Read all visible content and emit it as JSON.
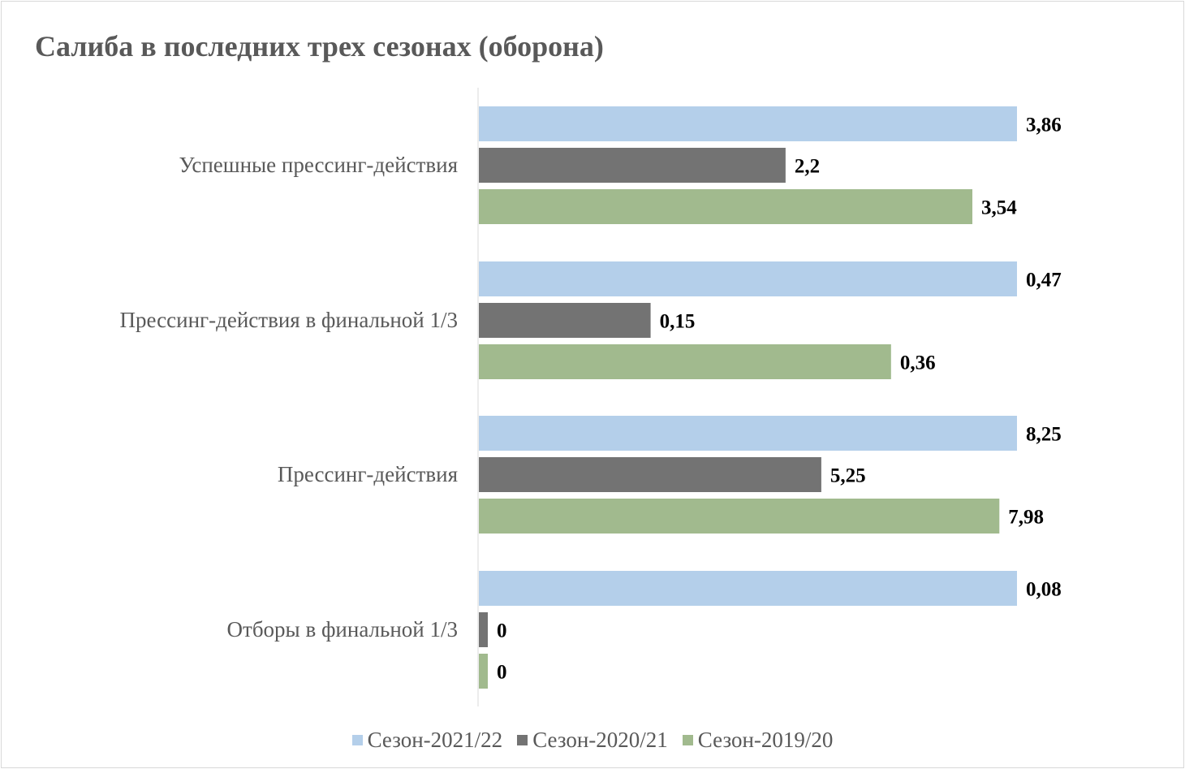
{
  "chart_data": {
    "type": "bar",
    "orientation": "horizontal",
    "title": "Салиба в последних трех сезонах (оборона)",
    "categories": [
      "Успешные прессинг-действия",
      "Прессинг-действия в финальной 1/3",
      "Прессинг-действия",
      "Отборы в финальной 1/3"
    ],
    "series": [
      {
        "name": "Сезон-2021/22",
        "color": "#b4cfea",
        "values": [
          3.86,
          0.47,
          8.25,
          0.08
        ],
        "labels": [
          "3,86",
          "0,47",
          "8,25",
          "0,08"
        ]
      },
      {
        "name": "Сезон-2020/21",
        "color": "#737373",
        "values": [
          2.2,
          0.15,
          5.25,
          0
        ],
        "labels": [
          "2,2",
          "0,15",
          "5,25",
          "0"
        ]
      },
      {
        "name": "Сезон-2019/20",
        "color": "#a1ba8e",
        "values": [
          3.54,
          0.36,
          7.98,
          0
        ],
        "labels": [
          "3,54",
          "0,36",
          "7,98",
          "0"
        ]
      }
    ],
    "legend": "bottom",
    "grid": false
  }
}
